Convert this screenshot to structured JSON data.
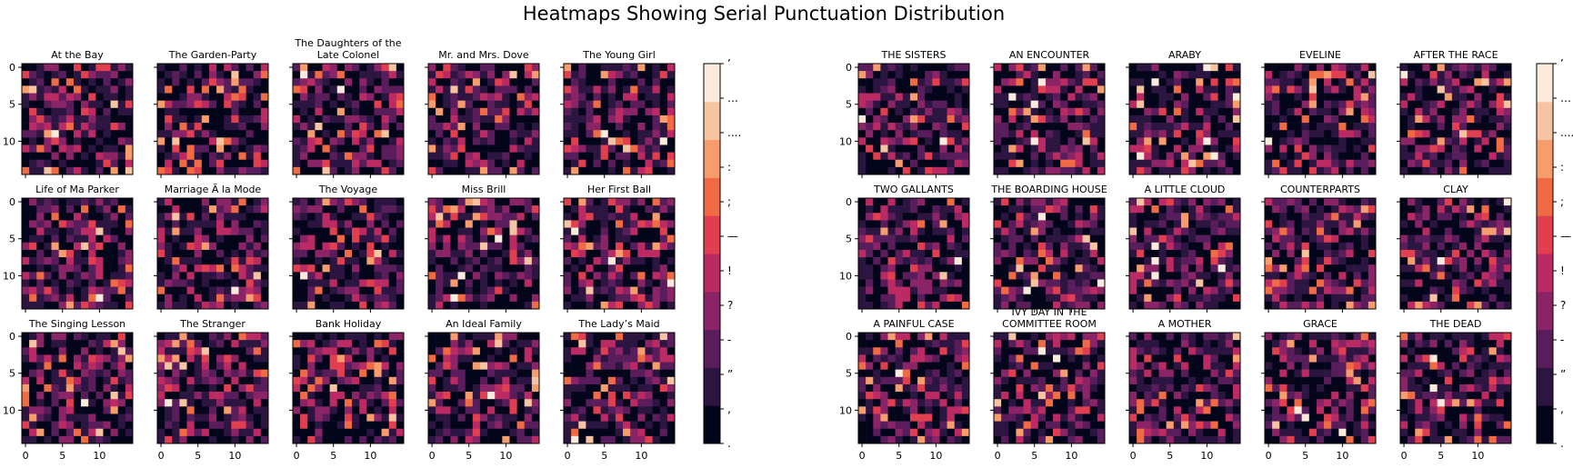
{
  "title": "Heatmaps Showing Serial Punctuation Distribution",
  "colors": {
    "cmap": [
      "#03051a",
      "#2c1540",
      "#5a1d5c",
      "#8a2467",
      "#bb2a63",
      "#e13f4f",
      "#f06b43",
      "#f69c6d",
      "#f7c4a2",
      "#faebdd"
    ]
  },
  "chart_data": [
    {
      "type": "heatmap",
      "rows": 15,
      "cols": 15,
      "x_ticks": [
        0,
        5,
        10
      ],
      "y_ticks": [
        0,
        5,
        10
      ],
      "colorbar_labels": [
        "’",
        "…",
        "....",
        ":",
        ";",
        "—",
        "!",
        "?",
        "-",
        "”",
        "‚",
        "."
      ],
      "panels": [
        {
          "title": "At the Bay",
          "seed": 11
        },
        {
          "title": "The Garden-Party",
          "seed": 12
        },
        {
          "title": "The Daughters of the Late Colonel",
          "seed": 13
        },
        {
          "title": "Mr. and Mrs. Dove",
          "seed": 14
        },
        {
          "title": "The Young Girl",
          "seed": 15
        },
        {
          "title": "Life of Ma Parker",
          "seed": 16
        },
        {
          "title": "Marriage Ã  la Mode",
          "seed": 17
        },
        {
          "title": "The Voyage",
          "seed": 18
        },
        {
          "title": "Miss Brill",
          "seed": 19
        },
        {
          "title": "Her First Ball",
          "seed": 20
        },
        {
          "title": "The Singing Lesson",
          "seed": 21
        },
        {
          "title": "The Stranger",
          "seed": 22
        },
        {
          "title": "Bank Holiday",
          "seed": 23
        },
        {
          "title": "An Ideal Family",
          "seed": 24
        },
        {
          "title": "The Lady’s Maid",
          "seed": 25
        }
      ]
    },
    {
      "type": "heatmap",
      "rows": 15,
      "cols": 15,
      "x_ticks": [
        0,
        5,
        10
      ],
      "y_ticks": [
        0,
        5,
        10
      ],
      "colorbar_labels": [
        "’",
        "…",
        "....",
        ":",
        ";",
        "—",
        "!",
        "?",
        "-",
        "”",
        "‚",
        "."
      ],
      "panels": [
        {
          "title": "THE SISTERS",
          "seed": 31
        },
        {
          "title": "AN ENCOUNTER",
          "seed": 32
        },
        {
          "title": "ARABY",
          "seed": 33
        },
        {
          "title": "EVELINE",
          "seed": 34
        },
        {
          "title": "AFTER THE RACE",
          "seed": 35
        },
        {
          "title": "TWO GALLANTS",
          "seed": 36
        },
        {
          "title": "THE BOARDING HOUSE",
          "seed": 37
        },
        {
          "title": "A LITTLE CLOUD",
          "seed": 38
        },
        {
          "title": "COUNTERPARTS",
          "seed": 39
        },
        {
          "title": "CLAY",
          "seed": 40
        },
        {
          "title": "A PAINFUL CASE",
          "seed": 41
        },
        {
          "title": "IVY DAY IN THE COMMITTEE ROOM",
          "seed": 42
        },
        {
          "title": "A MOTHER",
          "seed": 43
        },
        {
          "title": "GRACE",
          "seed": 44
        },
        {
          "title": "THE DEAD",
          "seed": 45
        }
      ]
    }
  ]
}
